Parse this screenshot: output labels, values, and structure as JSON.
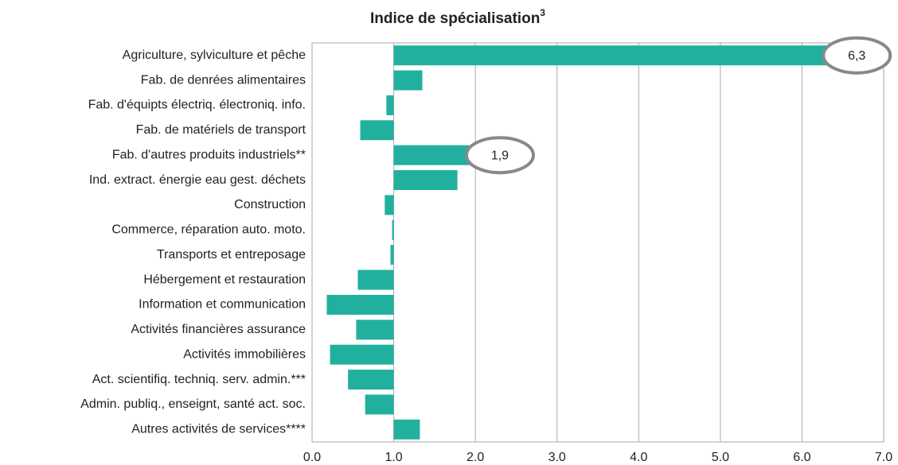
{
  "chart_data": {
    "type": "bar",
    "orientation": "horizontal",
    "title": "Indice de spécialisation",
    "title_superscript": "3",
    "categories": [
      "Agriculture, sylviculture et pêche",
      "Fab. de denrées alimentaires",
      "Fab. d'équipts électriq. électroniq. info.",
      "Fab. de matériels de transport",
      "Fab. d'autres produits industriels**",
      "Ind. extract. énergie eau gest. déchets",
      "Construction",
      "Commerce, réparation auto. moto.",
      "Transports et entreposage",
      "Hébergement et restauration",
      "Information et communication",
      "Activités financières assurance",
      "Activités immobilières",
      "Act. scientifiq. techniq. serv. admin.***",
      "Admin. publiq., enseignt, santé act. soc.",
      "Autres activités de services****"
    ],
    "values": [
      6.3,
      1.35,
      0.91,
      0.59,
      1.93,
      1.78,
      0.89,
      0.98,
      0.96,
      0.56,
      0.18,
      0.54,
      0.22,
      0.44,
      0.65,
      1.32
    ],
    "value_labels": [
      "6,3",
      null,
      null,
      null,
      "1,9",
      null,
      null,
      null,
      null,
      null,
      null,
      null,
      null,
      null,
      null,
      null
    ],
    "color": "#22b09e",
    "base": 1,
    "xlim": [
      0,
      7
    ],
    "xticks": [
      {
        "value": 0,
        "label": "0.0"
      },
      {
        "value": 1,
        "label": "1.0"
      },
      {
        "value": 2,
        "label": "2.0"
      },
      {
        "value": 3,
        "label": "3.0"
      },
      {
        "value": 4,
        "label": "4.0"
      },
      {
        "value": 5,
        "label": "5.0"
      },
      {
        "value": 6,
        "label": "6.0"
      },
      {
        "value": 7,
        "label": "7.0"
      }
    ],
    "grid": true
  }
}
